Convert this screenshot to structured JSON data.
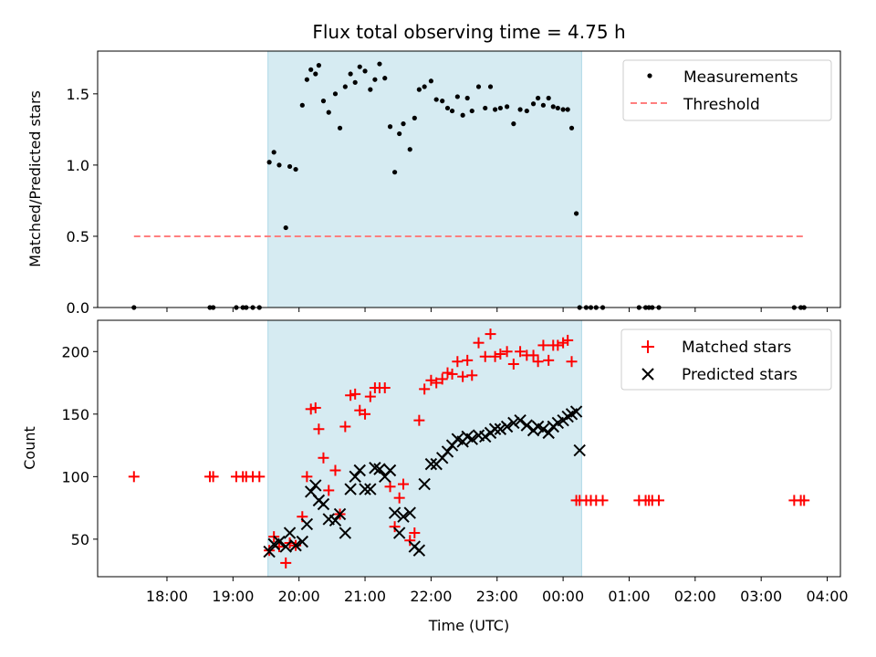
{
  "figure": {
    "title": "Flux total observing time = 4.75 h",
    "xlabel": "Time (UTC)"
  },
  "chart_data": [
    {
      "type": "scatter",
      "ylabel": "Matched/Predicted stars",
      "xlim_hours": [
        16.95,
        28.2
      ],
      "ylim": [
        0,
        1.8
      ],
      "yticks": [
        0.0,
        0.5,
        1.0,
        1.5
      ],
      "ytick_labels": [
        "0.0",
        "0.5",
        "1.0",
        "1.5"
      ],
      "shaded_region_hours": [
        19.53,
        24.28
      ],
      "threshold": {
        "value": 0.5,
        "x_range_hours": [
          17.5,
          27.65
        ],
        "color": "#ff7f7f"
      },
      "legend": {
        "position": "top-right",
        "entries": [
          "Measurements",
          "Threshold"
        ]
      },
      "series": [
        {
          "name": "Measurements",
          "marker": "dot",
          "color": "#000000",
          "x_hours": [
            17.5,
            18.65,
            18.7,
            19.05,
            19.15,
            19.2,
            19.3,
            19.4,
            19.55,
            19.62,
            19.7,
            19.8,
            19.86,
            19.95,
            20.05,
            20.12,
            20.18,
            20.25,
            20.3,
            20.37,
            20.45,
            20.55,
            20.62,
            20.7,
            20.78,
            20.85,
            20.92,
            21.0,
            21.08,
            21.15,
            21.22,
            21.3,
            21.38,
            21.45,
            21.52,
            21.58,
            21.68,
            21.75,
            21.82,
            21.9,
            22.0,
            22.08,
            22.17,
            22.25,
            22.32,
            22.4,
            22.48,
            22.55,
            22.62,
            22.72,
            22.82,
            22.9,
            22.97,
            23.05,
            23.15,
            23.25,
            23.35,
            23.45,
            23.55,
            23.62,
            23.7,
            23.78,
            23.85,
            23.92,
            24.0,
            24.07,
            24.13,
            24.2,
            24.25,
            24.35,
            24.42,
            24.5,
            24.6,
            25.15,
            25.25,
            25.3,
            25.35,
            25.45,
            27.5,
            27.6,
            27.65
          ],
          "y": [
            0,
            0,
            0,
            0,
            0,
            0,
            0,
            0,
            1.02,
            1.09,
            1.0,
            0.56,
            0.99,
            0.97,
            1.42,
            1.6,
            1.67,
            1.64,
            1.7,
            1.45,
            1.37,
            1.5,
            1.26,
            1.55,
            1.64,
            1.58,
            1.69,
            1.66,
            1.53,
            1.6,
            1.71,
            1.61,
            1.27,
            0.95,
            1.22,
            1.29,
            1.11,
            1.33,
            1.53,
            1.55,
            1.59,
            1.46,
            1.45,
            1.4,
            1.38,
            1.48,
            1.35,
            1.47,
            1.38,
            1.55,
            1.4,
            1.55,
            1.39,
            1.4,
            1.41,
            1.29,
            1.39,
            1.38,
            1.43,
            1.47,
            1.42,
            1.47,
            1.41,
            1.4,
            1.39,
            1.39,
            1.26,
            0.66,
            0,
            0,
            0,
            0,
            0,
            0,
            0,
            0,
            0,
            0,
            0,
            0,
            0
          ]
        }
      ]
    },
    {
      "type": "scatter",
      "ylabel": "Count",
      "xlim_hours": [
        16.95,
        28.2
      ],
      "ylim": [
        20,
        225
      ],
      "yticks": [
        50,
        100,
        150,
        200
      ],
      "ytick_labels": [
        "50",
        "100",
        "150",
        "200"
      ],
      "xticks_hours": [
        18,
        19,
        20,
        21,
        22,
        23,
        24,
        25,
        26,
        27,
        28
      ],
      "xtick_labels": [
        "18:00",
        "19:00",
        "20:00",
        "21:00",
        "22:00",
        "23:00",
        "00:00",
        "01:00",
        "02:00",
        "03:00",
        "04:00"
      ],
      "shaded_region_hours": [
        19.53,
        24.28
      ],
      "legend": {
        "position": "top-right",
        "entries": [
          "Matched stars",
          "Predicted stars"
        ]
      },
      "series": [
        {
          "name": "Matched stars",
          "marker": "plus",
          "color": "#ff0000",
          "x_hours": [
            17.5,
            18.65,
            18.7,
            19.05,
            19.15,
            19.2,
            19.3,
            19.4,
            19.55,
            19.62,
            19.7,
            19.8,
            19.86,
            19.95,
            20.05,
            20.12,
            20.18,
            20.25,
            20.3,
            20.37,
            20.45,
            20.55,
            20.62,
            20.7,
            20.78,
            20.85,
            20.92,
            21.0,
            21.08,
            21.15,
            21.22,
            21.3,
            21.38,
            21.45,
            21.52,
            21.58,
            21.68,
            21.75,
            21.82,
            21.9,
            22.0,
            22.08,
            22.17,
            22.25,
            22.32,
            22.4,
            22.48,
            22.55,
            22.62,
            22.72,
            22.82,
            22.9,
            22.97,
            23.05,
            23.15,
            23.25,
            23.35,
            23.45,
            23.55,
            23.62,
            23.7,
            23.78,
            23.85,
            23.92,
            24.0,
            24.07,
            24.13,
            24.2,
            24.25,
            24.35,
            24.42,
            24.5,
            24.6,
            25.15,
            25.25,
            25.3,
            25.35,
            25.45,
            27.5,
            27.6,
            27.65
          ],
          "y": [
            100,
            100,
            100,
            100,
            100,
            100,
            100,
            100,
            41,
            52,
            44,
            31,
            47,
            45,
            68,
            100,
            154,
            155,
            138,
            115,
            89,
            105,
            70,
            140,
            165,
            166,
            153,
            150,
            164,
            171,
            171,
            171,
            92,
            60,
            83,
            94,
            49,
            55,
            145,
            170,
            177,
            175,
            178,
            183,
            182,
            192,
            180,
            193,
            181,
            207,
            196,
            214,
            196,
            198,
            200,
            190,
            200,
            197,
            197,
            192,
            205,
            193,
            205,
            205,
            207,
            209,
            192,
            81,
            81,
            81,
            81,
            81,
            81,
            81,
            81,
            81,
            81,
            81,
            81,
            81,
            81
          ]
        },
        {
          "name": "Predicted stars",
          "marker": "x",
          "color": "#000000",
          "x_hours": [
            19.55,
            19.62,
            19.7,
            19.8,
            19.86,
            19.95,
            20.05,
            20.12,
            20.18,
            20.25,
            20.3,
            20.37,
            20.45,
            20.55,
            20.62,
            20.7,
            20.78,
            20.85,
            20.92,
            21.0,
            21.08,
            21.15,
            21.22,
            21.3,
            21.38,
            21.45,
            21.52,
            21.58,
            21.68,
            21.75,
            21.82,
            21.9,
            22.0,
            22.08,
            22.17,
            22.25,
            22.32,
            22.4,
            22.48,
            22.55,
            22.62,
            22.72,
            22.82,
            22.9,
            22.97,
            23.05,
            23.15,
            23.25,
            23.35,
            23.45,
            23.55,
            23.62,
            23.7,
            23.78,
            23.85,
            23.92,
            24.0,
            24.07,
            24.13,
            24.2,
            24.25
          ],
          "y": [
            40,
            46,
            48,
            44,
            55,
            45,
            48,
            62,
            88,
            93,
            81,
            78,
            66,
            65,
            70,
            55,
            90,
            100,
            105,
            90,
            90,
            107,
            106,
            100,
            105,
            71,
            55,
            68,
            71,
            44,
            41,
            94,
            110,
            110,
            115,
            120,
            125,
            130,
            128,
            132,
            130,
            133,
            132,
            135,
            138,
            138,
            140,
            143,
            145,
            141,
            137,
            140,
            138,
            135,
            140,
            143,
            145,
            148,
            150,
            152,
            121
          ]
        }
      ]
    }
  ]
}
